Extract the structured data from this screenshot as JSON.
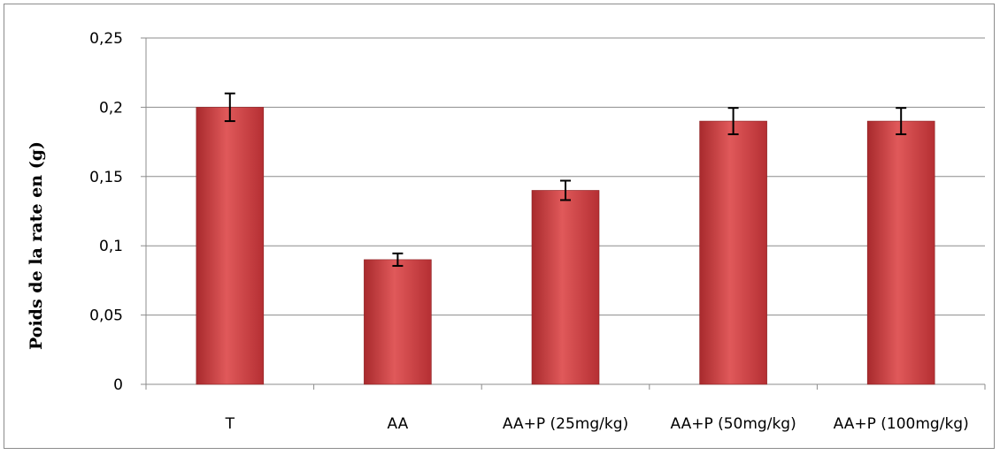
{
  "chart_data": {
    "type": "bar",
    "title": "",
    "xlabel": "",
    "ylabel": "Poids de la rate en (g)",
    "categories": [
      "T",
      "AA",
      "AA+P (25mg/kg)",
      "AA+P (50mg/kg)",
      "AA+P (100mg/kg)"
    ],
    "values": [
      0.2,
      0.09,
      0.14,
      0.19,
      0.19
    ],
    "errors": [
      0.01,
      0.0045,
      0.007,
      0.0095,
      0.0095
    ],
    "ylim": [
      0,
      0.25
    ],
    "yticks": [
      0,
      0.05,
      0.1,
      0.15,
      0.2,
      0.25
    ],
    "ytick_labels": [
      "0",
      "0,05",
      "0,1",
      "0,15",
      "0,2",
      "0,25"
    ],
    "grid": true,
    "legend": "none",
    "bar_color": "#c0373a",
    "bar_highlight": "#e05a5a",
    "grid_color": "#8c8c8c"
  }
}
